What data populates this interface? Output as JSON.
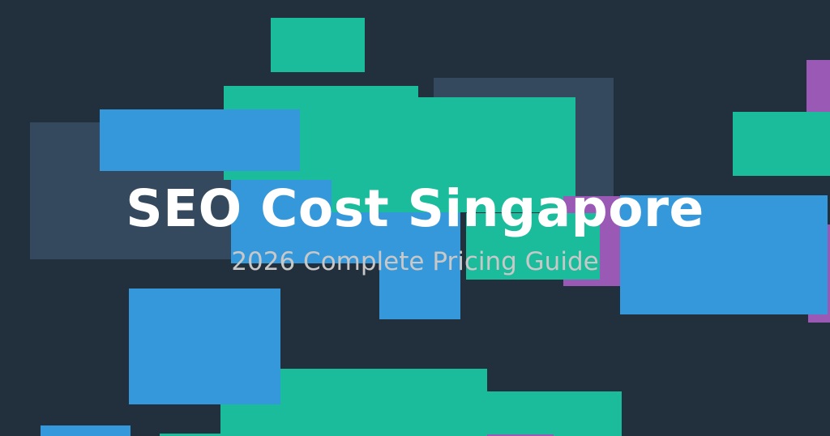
{
  "banner": {
    "title": "SEO Cost Singapore",
    "subtitle": "2026 Complete Pricing Guide"
  },
  "colors": {
    "background": "#222f3d",
    "slate": "#34495e",
    "green": "#1abc9c",
    "blue": "#3498db",
    "purple": "#9b59b6",
    "title": "#ffffff",
    "subtitle": "#c8c8c8"
  }
}
